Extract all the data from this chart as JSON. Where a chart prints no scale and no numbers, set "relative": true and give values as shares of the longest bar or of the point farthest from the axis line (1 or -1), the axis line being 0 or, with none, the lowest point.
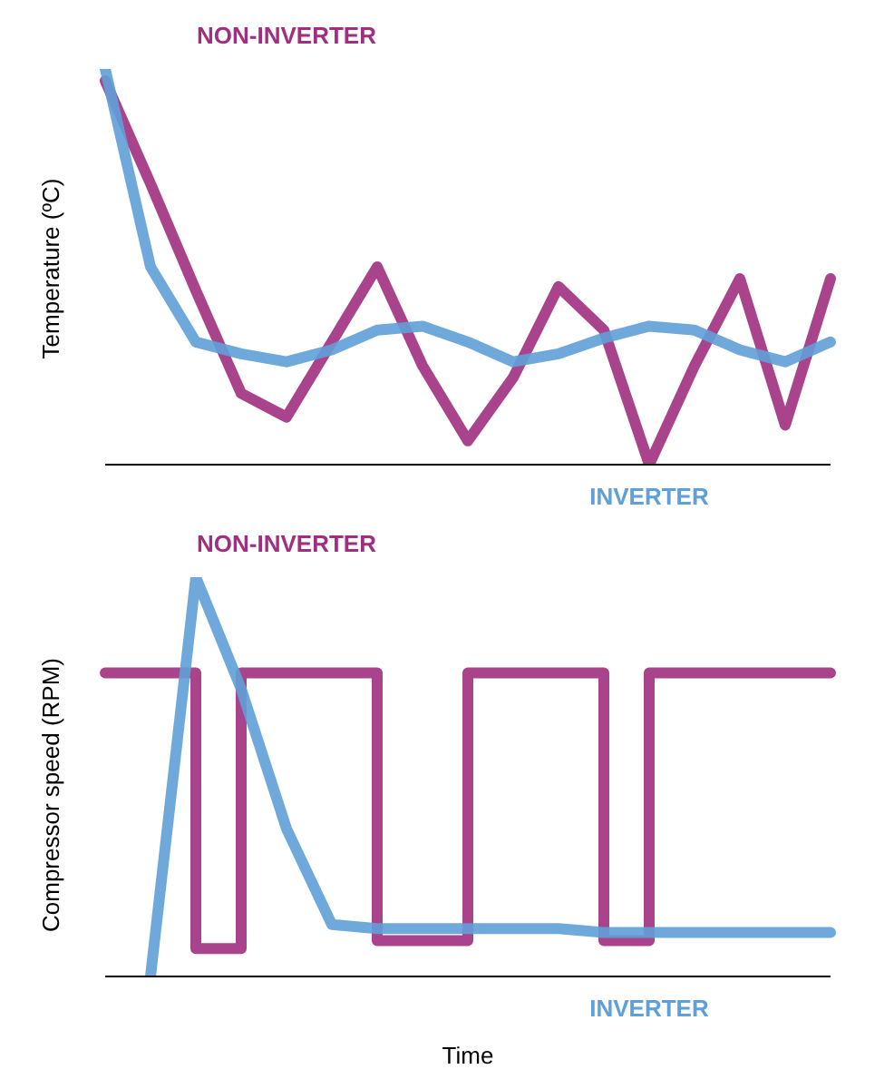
{
  "chart_data": [
    {
      "type": "line",
      "ylabel": "Temperature (ºC)",
      "relative": true,
      "tick_labels": false,
      "legend": false,
      "grid": false,
      "marker": "none",
      "categories": [
        null,
        null,
        null,
        null,
        null,
        null,
        null,
        null,
        null,
        null,
        null,
        null,
        null,
        null,
        null,
        null,
        null
      ],
      "series": [
        {
          "name": "NON-INVERTER",
          "color": "#a0307f",
          "values": [
            0.97,
            0.71,
            0.44,
            0.18,
            0.12,
            0.31,
            0.5,
            0.25,
            0.06,
            0.22,
            0.45,
            0.34,
            0.0,
            0.25,
            0.47,
            0.1,
            0.47
          ]
        },
        {
          "name": "INVERTER",
          "color": "#5fa0d8",
          "values": [
            1.0,
            0.5,
            0.31,
            0.28,
            0.26,
            0.29,
            0.34,
            0.35,
            0.31,
            0.26,
            0.28,
            0.32,
            0.35,
            0.34,
            0.29,
            0.26,
            0.31
          ]
        }
      ]
    },
    {
      "type": "line",
      "ylabel": "Compressor speed (RPM)",
      "xlabel": "Time",
      "relative": true,
      "tick_labels": false,
      "legend": false,
      "grid": false,
      "marker": "none",
      "categories": [
        null,
        null,
        null,
        null,
        null,
        null,
        null,
        null,
        null,
        null,
        null,
        null,
        null,
        null,
        null,
        null,
        null
      ],
      "series": [
        {
          "name": "NON-INVERTER",
          "type": "step",
          "color": "#a0307f",
          "values": [
            0.76,
            0.76,
            0.07,
            0.76,
            0.76,
            0.76,
            0.09,
            0.09,
            0.76,
            0.76,
            0.76,
            0.09,
            0.76,
            0.76,
            0.76,
            0.76,
            0.76
          ]
        },
        {
          "name": "INVERTER",
          "color": "#5fa0d8",
          "values": [
            null,
            0.0,
            1.0,
            0.72,
            0.37,
            0.13,
            0.12,
            0.12,
            0.12,
            0.12,
            0.12,
            0.11,
            0.11,
            0.11,
            0.11,
            0.11,
            0.11
          ]
        }
      ]
    }
  ]
}
